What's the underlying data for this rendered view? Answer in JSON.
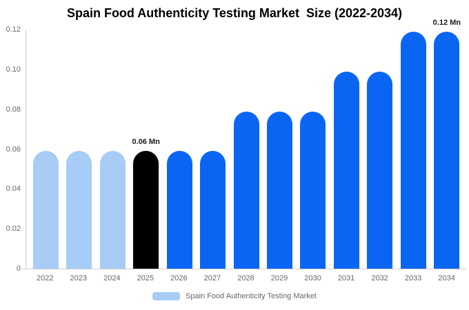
{
  "chart_data": {
    "type": "bar",
    "title": "Spain Food Authenticity Testing Market  Size (2022-2034)",
    "series_name": "Spain Food Authenticity Testing Market",
    "categories": [
      "2022",
      "2023",
      "2024",
      "2025",
      "2026",
      "2027",
      "2028",
      "2029",
      "2030",
      "2031",
      "2032",
      "2033",
      "2034"
    ],
    "values": [
      0.059,
      0.059,
      0.059,
      0.059,
      0.059,
      0.059,
      0.079,
      0.079,
      0.079,
      0.099,
      0.099,
      0.119,
      0.119
    ],
    "bar_colors": [
      "#a7cdf6",
      "#a7cdf6",
      "#a7cdf6",
      "#000000",
      "#0a66f2",
      "#0a66f2",
      "#0a66f2",
      "#0a66f2",
      "#0a66f2",
      "#0a66f2",
      "#0a66f2",
      "#0a66f2",
      "#0a66f2"
    ],
    "xlabel": "",
    "ylabel": "",
    "ylim": [
      0,
      0.12
    ],
    "ytick_values": [
      0,
      0.02,
      0.04,
      0.06,
      0.08,
      0.1,
      0.12
    ],
    "ytick_labels": [
      "0",
      "0.02",
      "0.04",
      "0.06",
      "0.08",
      "0.10",
      "0.12"
    ],
    "grid": false,
    "legend_position": "bottom",
    "annotations": [
      {
        "category": "2025",
        "text": "0.06 Mn"
      },
      {
        "category": "2034",
        "text": "0.12 Mn"
      }
    ]
  },
  "colors": {
    "light_blue": "#a7cdf6",
    "blue": "#0a66f2",
    "black": "#000000",
    "axis_line": "#cccccc",
    "tick_text": "#666666",
    "annotation_text": "#1a1a1a",
    "title_text": "#000000",
    "background": "#ffffff"
  }
}
